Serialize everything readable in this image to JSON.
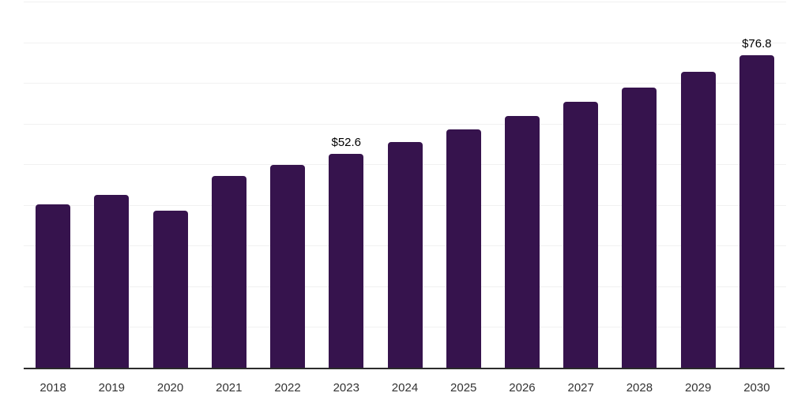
{
  "chart_data": {
    "type": "bar",
    "title": "",
    "xlabel": "",
    "ylabel": "",
    "categories": [
      "2018",
      "2019",
      "2020",
      "2021",
      "2022",
      "2023",
      "2024",
      "2025",
      "2026",
      "2027",
      "2028",
      "2029",
      "2030"
    ],
    "values": [
      40.2,
      42.5,
      38.6,
      47.2,
      49.8,
      52.6,
      55.5,
      58.6,
      61.9,
      65.3,
      68.9,
      72.7,
      76.8
    ],
    "data_labels": [
      {
        "category": "2023",
        "text": "$52.6"
      },
      {
        "category": "2030",
        "text": "$76.8"
      }
    ],
    "ylim": [
      0,
      90
    ],
    "grid_step": 10,
    "grid": true,
    "legend": "none",
    "colors": {
      "bar": "#36134D",
      "gridline": "#f1f1f1",
      "axis_line": "#2b2b2b",
      "tick_label": "#333333",
      "data_label": "#000000",
      "background": "#ffffff"
    }
  }
}
